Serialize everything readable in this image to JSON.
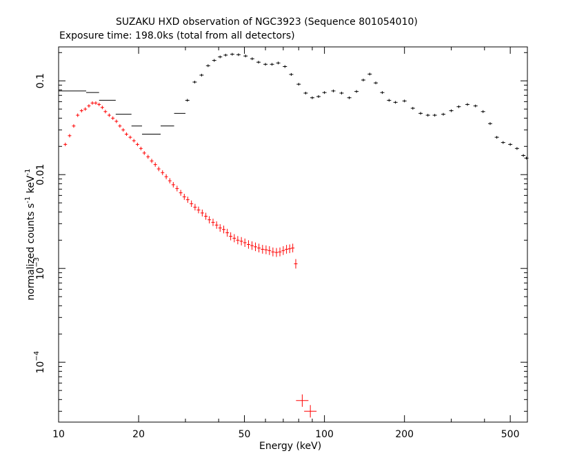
{
  "chart_data": {
    "type": "scatter",
    "title": "SUZAKU HXD observation of NGC3923 (Sequence 801054010)",
    "subtitle": "Exposure time: 198.0ks (total from all detectors)",
    "xlabel": "Energy (keV)",
    "ylabel_parts": [
      "normalized counts s",
      "-1",
      " keV",
      "-1"
    ],
    "x_scale": "log",
    "y_scale": "log",
    "xlim": [
      10,
      580
    ],
    "ylim": [
      2.3e-05,
      0.23
    ],
    "x_ticks_major": [
      {
        "v": 10,
        "label": "10"
      },
      {
        "v": 20,
        "label": "20"
      },
      {
        "v": 50,
        "label": "50"
      },
      {
        "v": 100,
        "label": "100"
      },
      {
        "v": 200,
        "label": "200"
      },
      {
        "v": 500,
        "label": "500"
      }
    ],
    "y_ticks_major": [
      {
        "v": 0.1,
        "label": "0.1"
      },
      {
        "v": 0.01,
        "label": "0.01"
      },
      {
        "v": 0.001,
        "base": "10",
        "exp": "−3"
      },
      {
        "v": 0.0001,
        "base": "10",
        "exp": "−4"
      }
    ],
    "grid": false,
    "series": [
      {
        "color": "#000000",
        "segments": [
          {
            "x0": 10,
            "x1": 12.7,
            "y": 0.078
          },
          {
            "x0": 12.7,
            "x1": 14.2,
            "y": 0.075
          },
          {
            "x0": 14.2,
            "x1": 16.4,
            "y": 0.062
          },
          {
            "x0": 16.4,
            "x1": 18.8,
            "y": 0.044
          },
          {
            "x0": 18.8,
            "x1": 20.6,
            "y": 0.033
          },
          {
            "x0": 20.6,
            "x1": 24.2,
            "y": 0.027
          },
          {
            "x0": 24.2,
            "x1": 27.2,
            "y": 0.033
          },
          {
            "x0": 27.2,
            "x1": 30.0,
            "y": 0.045
          }
        ],
        "x": [
          30.5,
          32.5,
          34.5,
          36.5,
          38.5,
          40.5,
          42.5,
          45.0,
          47.5,
          50.5,
          53.5,
          56.5,
          60.0,
          63.5,
          67.0,
          71.0,
          75.0,
          80.0,
          85.0,
          90.0,
          95.0,
          100.0,
          108.0,
          116.0,
          124.0,
          132.0,
          140.0,
          148.0,
          156.0,
          165.0,
          175.0,
          185.0,
          200.0,
          215.0,
          230.0,
          245.0,
          260.0,
          280.0,
          300.0,
          320.0,
          345.0,
          370.0,
          395.0,
          420.0,
          445.0,
          470.0,
          500.0,
          530.0,
          560.0,
          575.0
        ],
        "y": [
          0.062,
          0.097,
          0.115,
          0.145,
          0.165,
          0.18,
          0.188,
          0.192,
          0.19,
          0.184,
          0.172,
          0.158,
          0.15,
          0.15,
          0.155,
          0.142,
          0.117,
          0.092,
          0.074,
          0.066,
          0.068,
          0.075,
          0.078,
          0.074,
          0.066,
          0.077,
          0.102,
          0.118,
          0.095,
          0.075,
          0.062,
          0.059,
          0.061,
          0.051,
          0.045,
          0.043,
          0.043,
          0.044,
          0.048,
          0.053,
          0.056,
          0.054,
          0.047,
          0.035,
          0.025,
          0.022,
          0.021,
          0.019,
          0.016,
          0.015
        ]
      },
      {
        "color": "#ff0000",
        "x": [
          10.6,
          11.0,
          11.4,
          11.8,
          12.2,
          12.6,
          13.0,
          13.4,
          13.8,
          14.2,
          14.6,
          15.0,
          15.5,
          16.0,
          16.5,
          17.0,
          17.5,
          18.0,
          18.6,
          19.2,
          19.8,
          20.4,
          21.0,
          21.7,
          22.4,
          23.1,
          23.8,
          24.6,
          25.4,
          26.2,
          27.0,
          27.9,
          28.8,
          29.7,
          30.6,
          31.6,
          32.6,
          33.6,
          34.7,
          35.8,
          36.9,
          38.1,
          39.3,
          40.5,
          41.8,
          43.1,
          44.4,
          45.8,
          47.2,
          48.7,
          50.2,
          51.8,
          53.4,
          55.0,
          56.7,
          58.5,
          60.3,
          62.1,
          64.0,
          66.0,
          68.0,
          70.0,
          72.0,
          74.0,
          76.0,
          78.0,
          82.5,
          88.5
        ],
        "y": [
          0.021,
          0.026,
          0.033,
          0.043,
          0.048,
          0.05,
          0.054,
          0.058,
          0.058,
          0.056,
          0.052,
          0.047,
          0.043,
          0.04,
          0.037,
          0.033,
          0.03,
          0.027,
          0.025,
          0.023,
          0.021,
          0.019,
          0.017,
          0.0155,
          0.014,
          0.0128,
          0.0115,
          0.0105,
          0.0095,
          0.0086,
          0.0078,
          0.0071,
          0.0064,
          0.0058,
          0.0054,
          0.0049,
          0.0045,
          0.0042,
          0.0039,
          0.0036,
          0.0033,
          0.0031,
          0.0029,
          0.0027,
          0.0026,
          0.0024,
          0.0022,
          0.0021,
          0.002,
          0.00195,
          0.00188,
          0.0018,
          0.00175,
          0.0017,
          0.00165,
          0.0016,
          0.00158,
          0.00155,
          0.0015,
          0.00148,
          0.0015,
          0.00155,
          0.0016,
          0.00162,
          0.00165,
          0.00112,
          3.9e-05,
          3e-05
        ]
      }
    ]
  }
}
